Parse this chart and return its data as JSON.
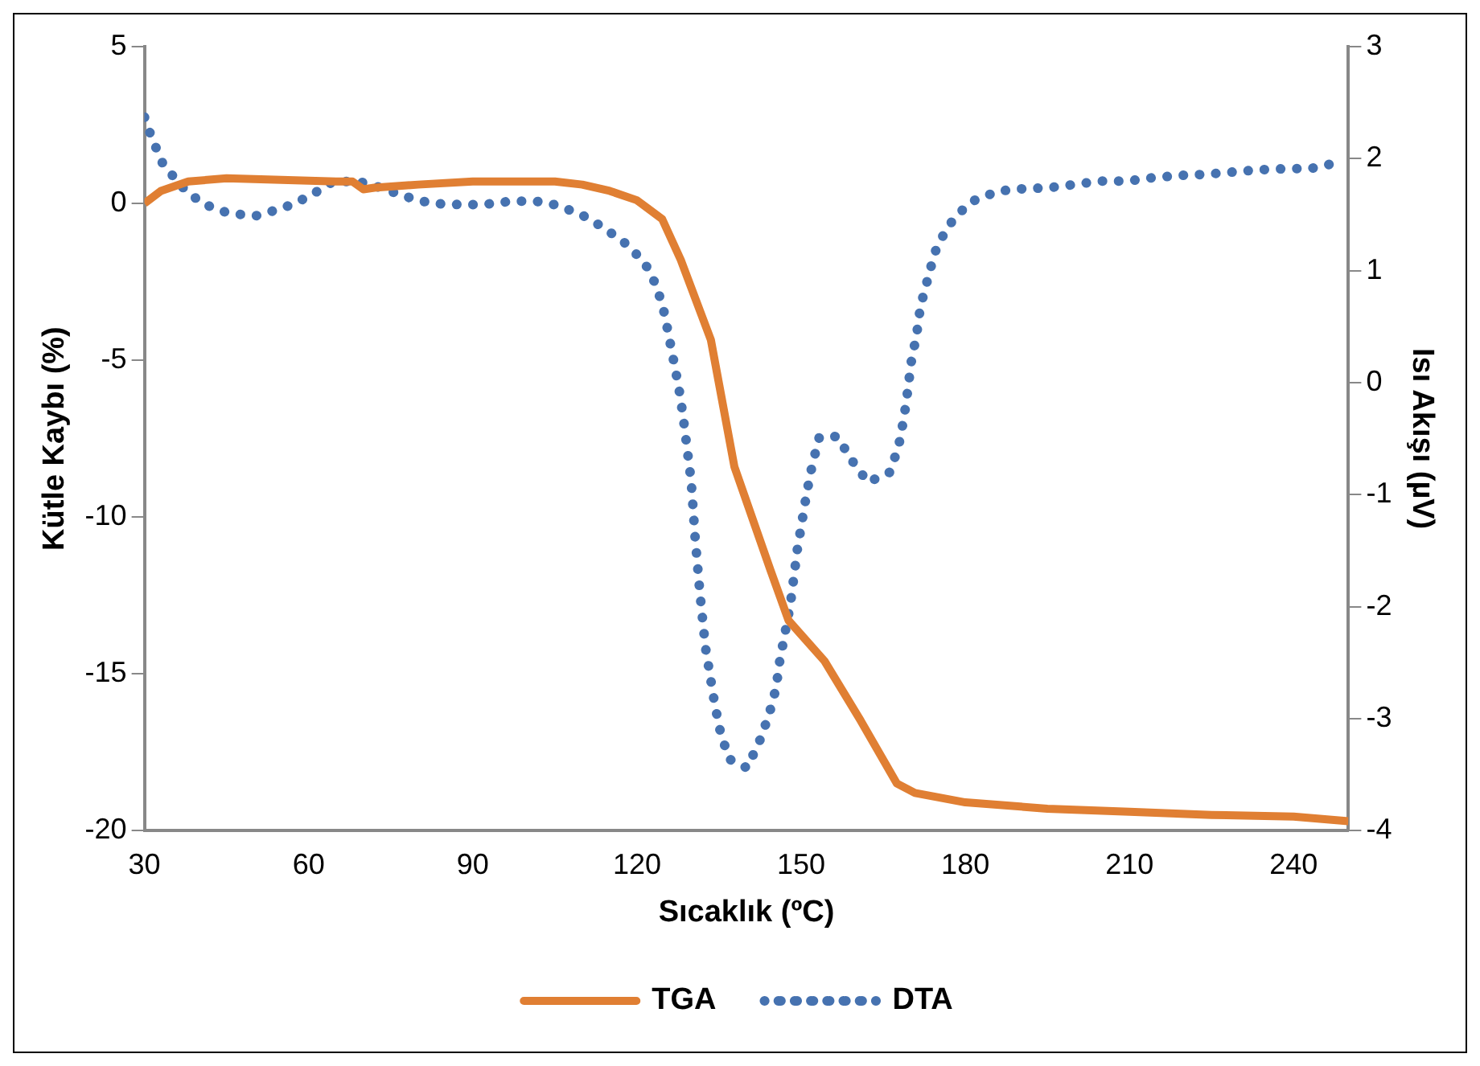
{
  "chart_data": {
    "type": "line",
    "xlabel": "Sıcaklık (ºC)",
    "ylabel": "Kütle Kaybı (%)",
    "y2label": "Isı Akışı (µV)",
    "xlim": [
      30,
      250
    ],
    "xticks": [
      30,
      60,
      90,
      120,
      150,
      180,
      210,
      240
    ],
    "ylim": [
      -20,
      5
    ],
    "yticks": [
      -20,
      -15,
      -10,
      -5,
      0,
      5
    ],
    "y2lim": [
      -4,
      3
    ],
    "y2ticks": [
      -4,
      -3,
      -2,
      -1,
      0,
      1,
      2,
      3
    ],
    "grid": false,
    "legend": "bottom",
    "marker": "none",
    "series": [
      {
        "name": "TGA",
        "color": "#e07f33",
        "line_style": "solid",
        "x": [
          30,
          33,
          38,
          45,
          55,
          65,
          68,
          70,
          72,
          80,
          90,
          100,
          105,
          110,
          115,
          120,
          124.6,
          128,
          133.5,
          137.8,
          144.4,
          147.7,
          154.3,
          160.9,
          167.5,
          170.8,
          180,
          195,
          210,
          225,
          240,
          250
        ],
        "values": [
          0,
          0.4,
          0.7,
          0.8,
          0.75,
          0.7,
          0.7,
          0.45,
          0.5,
          0.6,
          0.7,
          0.7,
          0.7,
          0.6,
          0.4,
          0.1,
          -0.5,
          -1.8,
          -4.35,
          -8.4,
          -11.7,
          -13.3,
          -14.6,
          -16.5,
          -18.5,
          -18.8,
          -19.1,
          -19.3,
          -19.4,
          -19.5,
          -19.55,
          -19.7
        ]
      },
      {
        "name": "DTA",
        "color": "#4672b0",
        "line_style": "dotted",
        "axis": "y2",
        "x": [
          30,
          31.3,
          33.3,
          36.6,
          40.5,
          45.5,
          50.4,
          55.4,
          60,
          64.3,
          68.9,
          73.2,
          77.8,
          82.4,
          87.4,
          92,
          97,
          101.5,
          104.8,
          109.5,
          113.7,
          117.7,
          121.3,
          123.6,
          125,
          126,
          127,
          127.9,
          128.6,
          129.9,
          130.6,
          131.5,
          132.5,
          134.2,
          135.2,
          136.8,
          140.1,
          142.4,
          144.1,
          145.4,
          146.1,
          148,
          149.3,
          151,
          152,
          153.3,
          156.6,
          159.2,
          162.2,
          166.2,
          167.8,
          168.8,
          169.5,
          170.1,
          171.1,
          171.8,
          173.1,
          174.4,
          176.7,
          180,
          181.3,
          186,
          190.2,
          195.2,
          200.1,
          204.7,
          209.7,
          214.3,
          219.3,
          223.9,
          228.8,
          233.4,
          238.4,
          243,
          247.6
        ],
        "values": [
          2.37,
          2.19,
          1.96,
          1.76,
          1.6,
          1.51,
          1.49,
          1.56,
          1.66,
          1.79,
          1.8,
          1.74,
          1.66,
          1.6,
          1.59,
          1.59,
          1.62,
          1.62,
          1.59,
          1.51,
          1.39,
          1.25,
          1.08,
          0.86,
          0.62,
          0.37,
          0.12,
          -0.12,
          -0.37,
          -0.88,
          -1.37,
          -1.88,
          -2.36,
          -2.87,
          -3.11,
          -3.36,
          -3.44,
          -3.2,
          -2.97,
          -2.73,
          -2.48,
          -1.99,
          -1.49,
          -0.99,
          -0.74,
          -0.49,
          -0.48,
          -0.69,
          -0.89,
          -0.8,
          -0.57,
          -0.31,
          -0.06,
          0.18,
          0.43,
          0.68,
          0.92,
          1.16,
          1.39,
          1.57,
          1.62,
          1.71,
          1.73,
          1.74,
          1.77,
          1.8,
          1.8,
          1.83,
          1.85,
          1.86,
          1.88,
          1.9,
          1.91,
          1.91,
          1.96
        ]
      }
    ]
  }
}
